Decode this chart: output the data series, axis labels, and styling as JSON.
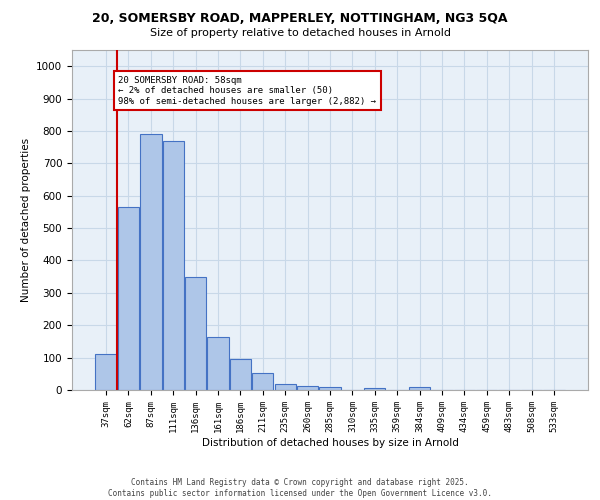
{
  "title_line1": "20, SOMERSBY ROAD, MAPPERLEY, NOTTINGHAM, NG3 5QA",
  "title_line2": "Size of property relative to detached houses in Arnold",
  "xlabel": "Distribution of detached houses by size in Arnold",
  "ylabel": "Number of detached properties",
  "bar_labels": [
    "37sqm",
    "62sqm",
    "87sqm",
    "111sqm",
    "136sqm",
    "161sqm",
    "186sqm",
    "211sqm",
    "235sqm",
    "260sqm",
    "285sqm",
    "310sqm",
    "335sqm",
    "359sqm",
    "384sqm",
    "409sqm",
    "434sqm",
    "459sqm",
    "483sqm",
    "508sqm",
    "533sqm"
  ],
  "bar_values": [
    110,
    565,
    790,
    770,
    350,
    165,
    97,
    52,
    17,
    13,
    10,
    0,
    5,
    0,
    8,
    0,
    0,
    0,
    0,
    0,
    0
  ],
  "ylim": [
    0,
    1050
  ],
  "yticks": [
    0,
    100,
    200,
    300,
    400,
    500,
    600,
    700,
    800,
    900,
    1000
  ],
  "bar_color": "#aec6e8",
  "bar_edge_color": "#4472c4",
  "vline_color": "#cc0000",
  "annotation_text": "20 SOMERSBY ROAD: 58sqm\n← 2% of detached houses are smaller (50)\n98% of semi-detached houses are larger (2,882) →",
  "annotation_box_color": "#cc0000",
  "footer_text": "Contains HM Land Registry data © Crown copyright and database right 2025.\nContains public sector information licensed under the Open Government Licence v3.0.",
  "plot_bg_color": "#e8f0f8",
  "fig_bg_color": "#ffffff",
  "grid_color": "#c8d8e8"
}
